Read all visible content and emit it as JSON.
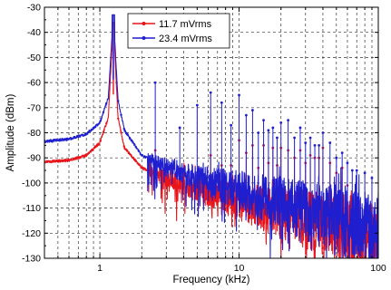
{
  "chart_data": {
    "type": "line",
    "xlabel": "Frequency (kHz)",
    "ylabel": "Amplitude (dBm)",
    "x_scale": "log",
    "xlim": [
      0.4,
      100
    ],
    "ylim": [
      -130,
      -30
    ],
    "x_ticks": [
      1,
      10,
      100
    ],
    "x_tick_labels": [
      "1",
      "10",
      "100"
    ],
    "y_ticks": [
      -130,
      -120,
      -110,
      -100,
      -90,
      -80,
      -70,
      -60,
      -50,
      -40,
      -30
    ],
    "y_tick_labels": [
      "-130",
      "-120",
      "-110",
      "-100",
      "-90",
      "-80",
      "-70",
      "-60",
      "-50",
      "-40",
      "-30"
    ],
    "grid": true,
    "legend_position": "top-center",
    "fundamental_khz": 1.25,
    "series": [
      {
        "name": "11.7 mVrms",
        "color": "#e8141b",
        "peak_db": -36,
        "baseline": [
          [
            0.4,
            -91.5
          ],
          [
            0.6,
            -91
          ],
          [
            0.8,
            -89
          ],
          [
            1.0,
            -84
          ],
          [
            1.15,
            -74
          ],
          [
            1.25,
            -36
          ],
          [
            1.35,
            -74
          ],
          [
            1.5,
            -86
          ],
          [
            2,
            -94
          ],
          [
            3,
            -98
          ],
          [
            5,
            -103
          ],
          [
            10,
            -107
          ],
          [
            20,
            -112
          ],
          [
            40,
            -116
          ],
          [
            100,
            -122
          ]
        ],
        "harmonics": [
          [
            2.5,
            -87
          ],
          [
            3.75,
            -96
          ],
          [
            5,
            -97
          ],
          [
            6.25,
            -89
          ],
          [
            7.5,
            -93
          ],
          [
            8.75,
            -93
          ],
          [
            10,
            -83
          ],
          [
            11.25,
            -88
          ],
          [
            12.5,
            -85
          ],
          [
            13.75,
            -94
          ],
          [
            15,
            -85
          ],
          [
            16.25,
            -92
          ],
          [
            17.5,
            -86
          ],
          [
            18.75,
            -93
          ],
          [
            20,
            -86
          ],
          [
            22.5,
            -87
          ],
          [
            25,
            -90
          ],
          [
            27.5,
            -87
          ],
          [
            30,
            -92
          ],
          [
            32.5,
            -89
          ],
          [
            35,
            -90
          ],
          [
            37.5,
            -90
          ],
          [
            40,
            -86
          ],
          [
            45,
            -92
          ],
          [
            50,
            -96
          ],
          [
            55,
            -94
          ],
          [
            60,
            -101
          ]
        ]
      },
      {
        "name": "23.4 mVrms",
        "color": "#1f1fd0",
        "peak_db": -33,
        "baseline": [
          [
            0.4,
            -83.5
          ],
          [
            0.6,
            -82.5
          ],
          [
            0.8,
            -80.5
          ],
          [
            1.0,
            -76
          ],
          [
            1.15,
            -66
          ],
          [
            1.25,
            -33
          ],
          [
            1.35,
            -67
          ],
          [
            1.5,
            -79
          ],
          [
            2,
            -89
          ],
          [
            3,
            -93
          ],
          [
            5,
            -98
          ],
          [
            10,
            -103
          ],
          [
            20,
            -108
          ],
          [
            40,
            -113
          ],
          [
            100,
            -118
          ]
        ],
        "harmonics": [
          [
            2.5,
            -60
          ],
          [
            3.75,
            -78
          ],
          [
            5,
            -69
          ],
          [
            6.25,
            -64
          ],
          [
            7.5,
            -68
          ],
          [
            8.75,
            -77
          ],
          [
            10,
            -65
          ],
          [
            11.25,
            -73
          ],
          [
            12.5,
            -71
          ],
          [
            13.75,
            -80
          ],
          [
            15,
            -75
          ],
          [
            16.25,
            -79
          ],
          [
            17.5,
            -78
          ],
          [
            18.75,
            -82
          ],
          [
            20,
            -76
          ],
          [
            22.5,
            -75
          ],
          [
            25,
            -82
          ],
          [
            27.5,
            -78
          ],
          [
            30,
            -84
          ],
          [
            32.5,
            -82
          ],
          [
            35,
            -85
          ],
          [
            37.5,
            -85
          ],
          [
            40,
            -80
          ],
          [
            45,
            -84
          ],
          [
            50,
            -90
          ],
          [
            55,
            -88
          ],
          [
            60,
            -92
          ],
          [
            65,
            -95
          ],
          [
            70,
            -95
          ],
          [
            80,
            -96
          ],
          [
            90,
            -98
          ]
        ]
      }
    ]
  }
}
